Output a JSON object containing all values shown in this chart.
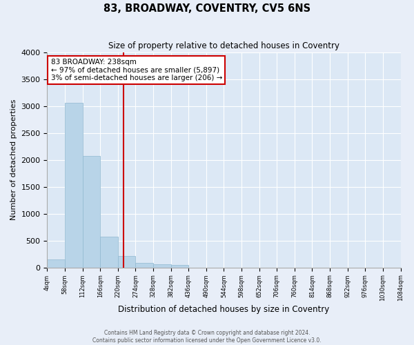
{
  "title": "83, BROADWAY, COVENTRY, CV5 6NS",
  "subtitle": "Size of property relative to detached houses in Coventry",
  "xlabel": "Distribution of detached houses by size in Coventry",
  "ylabel": "Number of detached properties",
  "bin_edges": [
    4,
    58,
    112,
    166,
    220,
    274,
    328,
    382,
    436,
    490,
    544,
    598,
    652,
    706,
    760,
    814,
    868,
    922,
    976,
    1030,
    1084
  ],
  "bar_heights": [
    150,
    3060,
    2070,
    570,
    210,
    80,
    55,
    50,
    0,
    0,
    0,
    0,
    0,
    0,
    0,
    0,
    0,
    0,
    0,
    0
  ],
  "bar_color": "#b8d4e8",
  "bar_edgecolor": "#90b8d0",
  "property_size": 238,
  "property_label": "83 BROADWAY: 238sqm",
  "annotation_line1": "← 97% of detached houses are smaller (5,897)",
  "annotation_line2": "3% of semi-detached houses are larger (206) →",
  "annotation_box_color": "#ffffff",
  "annotation_box_edgecolor": "#cc0000",
  "vline_color": "#cc0000",
  "ylim": [
    0,
    4000
  ],
  "yticks": [
    0,
    500,
    1000,
    1500,
    2000,
    2500,
    3000,
    3500,
    4000
  ],
  "footer_line1": "Contains HM Land Registry data © Crown copyright and database right 2024.",
  "footer_line2": "Contains public sector information licensed under the Open Government Licence v3.0.",
  "bg_color": "#e8eef8",
  "plot_bg_color": "#dce8f5",
  "grid_color": "#ffffff"
}
